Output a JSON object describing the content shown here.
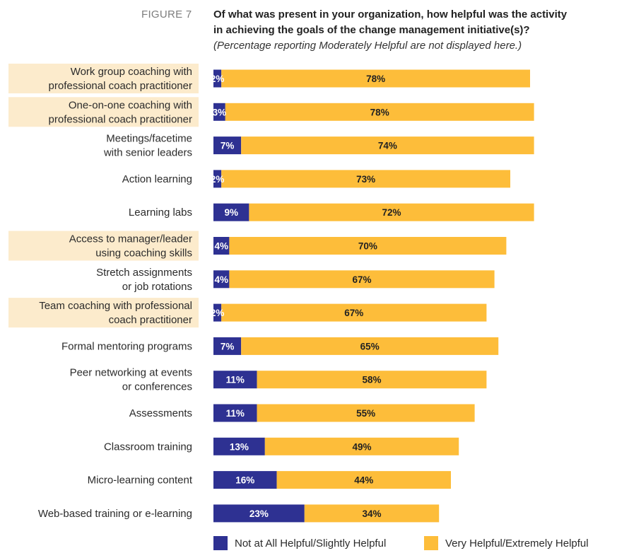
{
  "figure_label": "FIGURE 7",
  "title_line1": "Of what was present in your organization, how helpful was the activity",
  "title_line2": "in achieving the goals of the change management initiative(s)?",
  "subtitle": "(Percentage reporting Moderately Helpful are not displayed here.)",
  "colors": {
    "not_helpful": "#2e3192",
    "very_helpful": "#fdbd3a",
    "highlight": "#fcebcc",
    "dark_text": "#222222",
    "light_text": "#ffffff"
  },
  "chart_data": {
    "type": "bar",
    "orientation": "horizontal",
    "stacked": true,
    "title": "Of what was present in your organization, how helpful was the activity in achieving the goals of the change management initiative(s)?",
    "note": "(Percentage reporting Moderately Helpful are not displayed here.)",
    "categories": [
      {
        "lines": [
          "Work group coaching with",
          "professional coach practitioner"
        ],
        "highlighted": true
      },
      {
        "lines": [
          "One-on-one coaching with",
          "professional coach practitioner"
        ],
        "highlighted": true
      },
      {
        "lines": [
          "Meetings/facetime",
          "with senior leaders"
        ],
        "highlighted": false
      },
      {
        "lines": [
          "Action learning"
        ],
        "highlighted": false
      },
      {
        "lines": [
          "Learning labs"
        ],
        "highlighted": false
      },
      {
        "lines": [
          "Access to manager/leader",
          "using coaching skills"
        ],
        "highlighted": true
      },
      {
        "lines": [
          "Stretch assignments",
          "or job rotations"
        ],
        "highlighted": false
      },
      {
        "lines": [
          "Team coaching with professional",
          "coach practitioner"
        ],
        "highlighted": true
      },
      {
        "lines": [
          "Formal mentoring programs"
        ],
        "highlighted": false
      },
      {
        "lines": [
          "Peer networking at events",
          "or conferences"
        ],
        "highlighted": false
      },
      {
        "lines": [
          "Assessments"
        ],
        "highlighted": false
      },
      {
        "lines": [
          "Classroom training"
        ],
        "highlighted": false
      },
      {
        "lines": [
          "Micro-learning content"
        ],
        "highlighted": false
      },
      {
        "lines": [
          "Web-based training or e-learning"
        ],
        "highlighted": false
      }
    ],
    "series": [
      {
        "name": "Not at All Helpful/Slightly Helpful",
        "values": [
          2,
          3,
          7,
          2,
          9,
          4,
          4,
          2,
          7,
          11,
          11,
          13,
          16,
          23
        ]
      },
      {
        "name": "Very Helpful/Extremely Helpful",
        "values": [
          78,
          78,
          74,
          73,
          72,
          70,
          67,
          67,
          65,
          58,
          55,
          49,
          44,
          34
        ]
      }
    ],
    "unit": "%",
    "xlim": [
      0,
      100
    ],
    "legend_position": "bottom"
  }
}
